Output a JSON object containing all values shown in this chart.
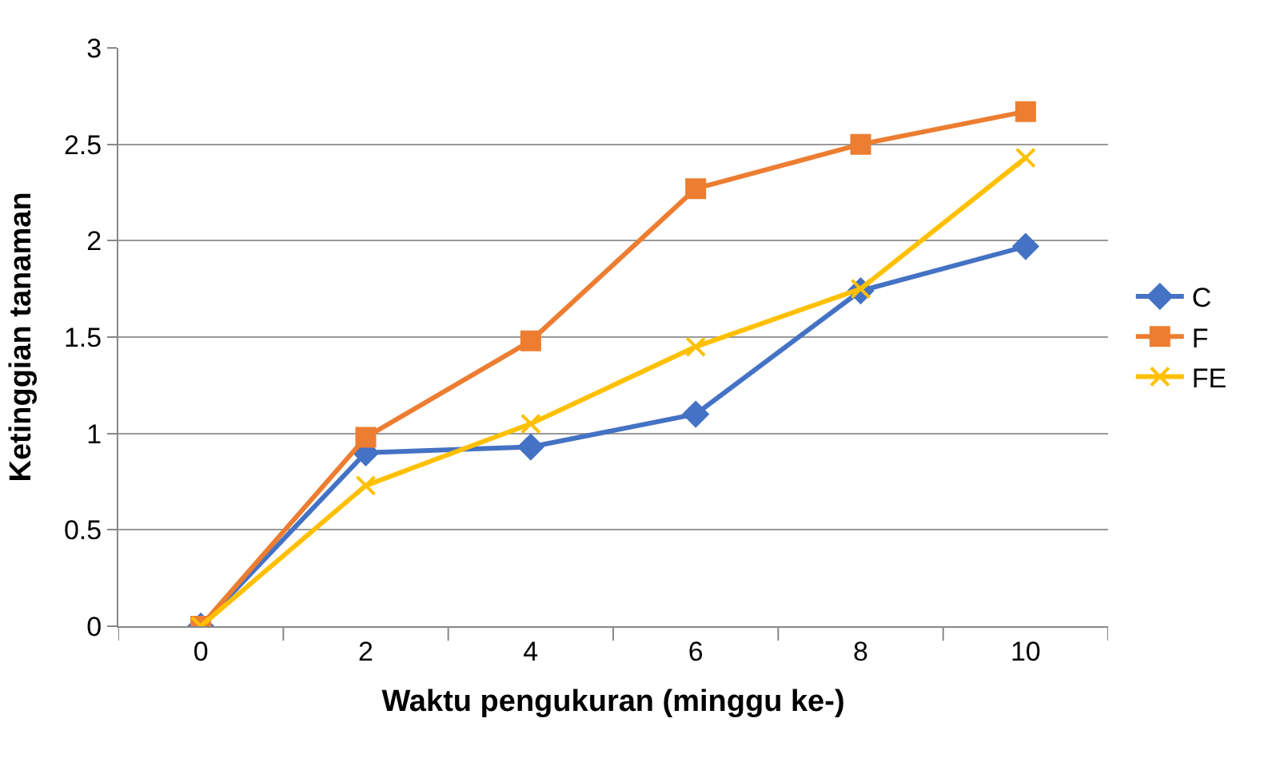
{
  "chart_data": {
    "type": "line",
    "xlabel": "Waktu pengukuran (minggu ke-)",
    "ylabel": "Ketinggian tanaman",
    "categories": [
      "0",
      "2",
      "4",
      "6",
      "8",
      "10"
    ],
    "series": [
      {
        "name": "C",
        "color": "#4472c4",
        "marker": "diamond",
        "values": [
          0,
          0.9,
          0.93,
          1.1,
          1.74,
          1.97
        ]
      },
      {
        "name": "F",
        "color": "#ed7d31",
        "marker": "square",
        "values": [
          0,
          0.98,
          1.48,
          2.27,
          2.5,
          2.67
        ]
      },
      {
        "name": "FE",
        "color": "#ffc000",
        "marker": "cross",
        "values": [
          0,
          0.73,
          1.05,
          1.45,
          1.75,
          2.43
        ]
      }
    ],
    "ylim": [
      0,
      3
    ],
    "yticks": [
      0,
      0.5,
      1,
      1.5,
      2,
      2.5,
      3
    ],
    "grid": "y",
    "legend": "right"
  }
}
